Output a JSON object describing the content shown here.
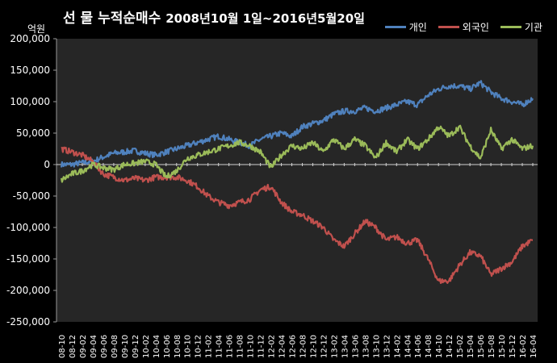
{
  "title": "선 물 누적순매수",
  "date_range": "2008년10월 1일~2016년5월20일",
  "unit_label": "억원",
  "chart_data": {
    "type": "line",
    "title": "선 물 누적순매수 2008년10월 1일~2016년5월20일",
    "ylabel": "억원",
    "ylim": [
      -250000,
      200000
    ],
    "yticks": [
      200000,
      150000,
      100000,
      50000,
      0,
      -50000,
      -100000,
      -150000,
      -200000,
      -250000
    ],
    "ytick_labels": [
      "200,000",
      "150,000",
      "100,000",
      "50,000",
      "0",
      "-50,000",
      "-100,000",
      "-150,000",
      "-200,000",
      "-250,000"
    ],
    "categories": [
      "08-10",
      "08-12",
      "09-02",
      "09-04",
      "09-06",
      "09-08",
      "09-10",
      "09-12",
      "10-02",
      "10-04",
      "10-06",
      "10-08",
      "10-10",
      "10-12",
      "11-02",
      "11-04",
      "11-06",
      "11-08",
      "11-10",
      "11-12",
      "12-02",
      "12-04",
      "12-06",
      "12-08",
      "12-10",
      "12-12",
      "13-02",
      "13-04",
      "13-06",
      "13-08",
      "13-10",
      "13-12",
      "14-02",
      "14-04",
      "14-06",
      "14-08",
      "14-10",
      "14-12",
      "15-02",
      "15-04",
      "15-06",
      "15-08",
      "15-10",
      "15-12",
      "16-02",
      "16-04"
    ],
    "grid": false,
    "legend_position": "top-right",
    "series": [
      {
        "name": "개인",
        "color": "#4f81bd",
        "values": [
          0,
          0,
          3000,
          5000,
          12000,
          18000,
          20000,
          22000,
          18000,
          15000,
          20000,
          25000,
          30000,
          35000,
          40000,
          45000,
          40000,
          35000,
          30000,
          40000,
          45000,
          50000,
          45000,
          60000,
          65000,
          70000,
          80000,
          85000,
          85000,
          90000,
          85000,
          90000,
          95000,
          100000,
          95000,
          110000,
          120000,
          125000,
          125000,
          120000,
          130000,
          115000,
          105000,
          100000,
          95000,
          105000
        ]
      },
      {
        "name": "외국인",
        "color": "#c0504d",
        "values": [
          25000,
          20000,
          15000,
          5000,
          -15000,
          -20000,
          -25000,
          -22000,
          -25000,
          -20000,
          -20000,
          -20000,
          -25000,
          -35000,
          -50000,
          -60000,
          -65000,
          -60000,
          -55000,
          -40000,
          -35000,
          -60000,
          -75000,
          -80000,
          -90000,
          -100000,
          -120000,
          -130000,
          -110000,
          -90000,
          -100000,
          -120000,
          -115000,
          -125000,
          -120000,
          -150000,
          -185000,
          -185000,
          -160000,
          -140000,
          -145000,
          -175000,
          -165000,
          -155000,
          -130000,
          -120000
        ]
      },
      {
        "name": "기관",
        "color": "#9bbb59",
        "values": [
          -25000,
          -15000,
          -10000,
          0,
          -5000,
          -8000,
          0,
          2000,
          5000,
          0,
          -20000,
          -10000,
          10000,
          15000,
          20000,
          25000,
          30000,
          35000,
          30000,
          20000,
          -5000,
          15000,
          30000,
          25000,
          35000,
          20000,
          40000,
          25000,
          40000,
          30000,
          10000,
          35000,
          20000,
          40000,
          25000,
          40000,
          60000,
          45000,
          60000,
          30000,
          10000,
          55000,
          25000,
          40000,
          25000,
          30000
        ]
      }
    ]
  }
}
